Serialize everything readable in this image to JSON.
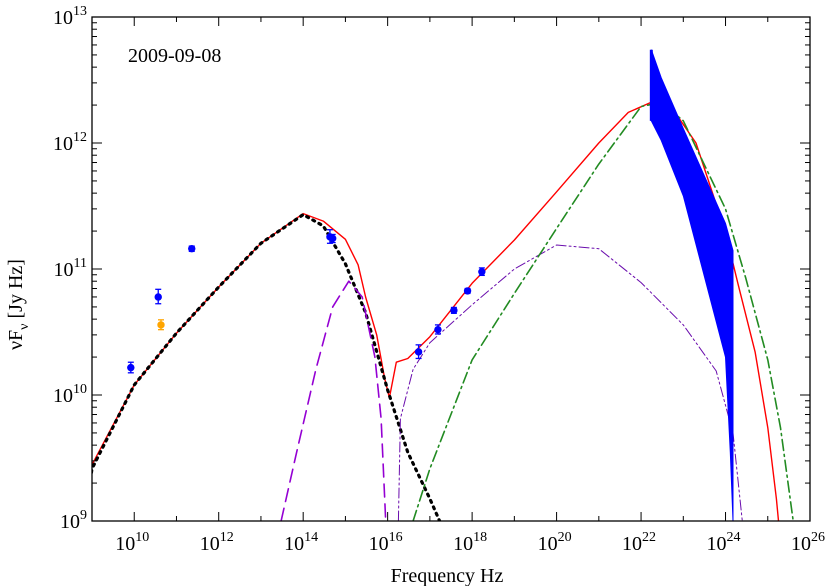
{
  "chart_data": {
    "type": "line",
    "annotation": "2009-09-08",
    "xlabel": "Frequency Hz",
    "ylabel": {
      "main": "νF",
      "sub": "ν",
      "unit": " [Jy Hz]"
    },
    "xscale": "log",
    "yscale": "log",
    "xlim": [
      1000000000.0,
      1e+26
    ],
    "ylim": [
      1000000000.0,
      10000000000000.0
    ],
    "x_ticks": [
      {
        "value": 10000000000.0,
        "base": "10",
        "exp": "10"
      },
      {
        "value": 1000000000000.0,
        "base": "10",
        "exp": "12"
      },
      {
        "value": 100000000000000.0,
        "base": "10",
        "exp": "14"
      },
      {
        "value": 1e+16,
        "base": "10",
        "exp": "16"
      },
      {
        "value": 1e+18,
        "base": "10",
        "exp": "18"
      },
      {
        "value": 1e+20,
        "base": "10",
        "exp": "20"
      },
      {
        "value": 1e+22,
        "base": "10",
        "exp": "22"
      },
      {
        "value": 1e+24,
        "base": "10",
        "exp": "24"
      },
      {
        "value": 1e+26,
        "base": "10",
        "exp": "26"
      }
    ],
    "y_ticks": [
      {
        "value": 1000000000.0,
        "base": "10",
        "exp": "9"
      },
      {
        "value": 10000000000.0,
        "base": "10",
        "exp": "10"
      },
      {
        "value": 100000000000.0,
        "base": "10",
        "exp": "11"
      },
      {
        "value": 1000000000000.0,
        "base": "10",
        "exp": "12"
      },
      {
        "value": 10000000000000.0,
        "base": "10",
        "exp": "13"
      }
    ],
    "observations": [
      {
        "name": "radio-1",
        "color": "#0000ff",
        "x": 8300000000.0,
        "y": 16500000000.0,
        "ylo": 15000000000.0,
        "yhi": 18200000000.0
      },
      {
        "name": "radio-2",
        "color": "#0000ff",
        "x": 37000000000.0,
        "y": 60000000000.0,
        "ylo": 53000000000.0,
        "yhi": 69000000000.0
      },
      {
        "name": "radio-3",
        "color": "#ffa500",
        "x": 43000000000.0,
        "y": 36000000000.0,
        "ylo": 33000000000.0,
        "yhi": 39500000000.0
      },
      {
        "name": "radio-4",
        "color": "#0000ff",
        "x": 230000000000.0,
        "y": 145000000000.0,
        "ylo": 138000000000.0,
        "yhi": 152000000000.0
      },
      {
        "name": "optical-1",
        "color": "#0000ff",
        "x": 430000000000000.0,
        "y": 180000000000.0,
        "ylo": 160000000000.0,
        "yhi": 205000000000.0
      },
      {
        "name": "optical-2",
        "color": "#0000ff",
        "x": 500000000000000.0,
        "y": 175000000000.0,
        "ylo": 162000000000.0,
        "yhi": 188000000000.0
      },
      {
        "name": "xray-1",
        "color": "#0000ff",
        "x": 5.4e+16,
        "y": 22000000000.0,
        "ylo": 19500000000.0,
        "yhi": 25000000000.0
      },
      {
        "name": "xray-2",
        "color": "#0000ff",
        "x": 1.55e+17,
        "y": 33000000000.0,
        "ylo": 30500000000.0,
        "yhi": 36000000000.0
      },
      {
        "name": "xray-3",
        "color": "#0000ff",
        "x": 3.7e+17,
        "y": 47000000000.0,
        "ylo": 44500000000.0,
        "yhi": 49500000000.0
      },
      {
        "name": "xray-4",
        "color": "#0000ff",
        "x": 7.8e+17,
        "y": 67000000000.0,
        "ylo": 64000000000.0,
        "yhi": 70000000000.0
      },
      {
        "name": "xray-5",
        "color": "#0000ff",
        "x": 1.7e+18,
        "y": 95000000000.0,
        "ylo": 89000000000.0,
        "yhi": 102000000000.0
      }
    ],
    "gamma_bowtie": {
      "color": "#0000ff",
      "upper": [
        [
          1.75e+22,
          5500000000000.0
        ],
        [
          3e+22,
          3300000000000.0
        ],
        [
          1e+23,
          1300000000000.0
        ],
        [
          1e+24,
          230000000000.0
        ],
        [
          1.5e+24,
          140000000000.0
        ]
      ],
      "lower": [
        [
          1.5e+24,
          1000000000.0
        ],
        [
          1.3e+24,
          3500000000.0
        ],
        [
          1e+24,
          20000000000.0
        ],
        [
          1e+23,
          380000000000.0
        ],
        [
          3e+22,
          1050000000000.0
        ],
        [
          1.75e+22,
          1500000000000.0
        ]
      ]
    },
    "series": [
      {
        "name": "total-model",
        "color": "#ff0000",
        "dash": "",
        "width": 1.4,
        "points": [
          [
            750000000.0,
            1000000000.0
          ],
          [
            830000000.0,
            1650000000.0
          ],
          [
            1000000000.0,
            2800000000.0
          ],
          [
            10000000000.0,
            12000000000.0
          ],
          [
            100000000000.0,
            31000000000.0
          ],
          [
            1000000000000.0,
            72000000000.0
          ],
          [
            10000000000000.0,
            160000000000.0
          ],
          [
            100000000000000.0,
            275000000000.0
          ],
          [
            300000000000000.0,
            240000000000.0
          ],
          [
            1000000000000000.0,
            172000000000.0
          ],
          [
            2000000000000000.0,
            108000000000.0
          ],
          [
            3000000000000000.0,
            60000000000.0
          ],
          [
            5500000000000000.0,
            30000000000.0
          ],
          [
            8500000000000000.0,
            13500000000.0
          ],
          [
            1.1e+16,
            9500000000.0
          ],
          [
            1.6e+16,
            18200000000.0
          ],
          [
            3e+16,
            19500000000.0
          ],
          [
            1e+17,
            29000000000.0
          ],
          [
            1e+18,
            77000000000.0
          ],
          [
            1e+19,
            170000000000.0
          ],
          [
            1e+20,
            410000000000.0
          ],
          [
            1e+21,
            1000000000000.0
          ],
          [
            5e+21,
            1750000000000.0
          ],
          [
            2e+22,
            2150000000000.0
          ],
          [
            6e+22,
            1800000000000.0
          ],
          [
            2e+23,
            1000000000000.0
          ],
          [
            1e+24,
            195000000000.0
          ],
          [
            2e+24,
            75000000000.0
          ],
          [
            5e+24,
            22000000000.0
          ],
          [
            1e+25,
            5500000000.0
          ],
          [
            1.6e+25,
            1500000000.0
          ],
          [
            1.8e+25,
            1000000000.0
          ]
        ]
      },
      {
        "name": "synchrotron",
        "color": "#000000",
        "dash": "2,5",
        "width": 3.2,
        "points": [
          [
            650000000.0,
            1000000000.0
          ],
          [
            1000000000.0,
            2600000000.0
          ],
          [
            10000000000.0,
            12000000000.0
          ],
          [
            100000000000.0,
            31000000000.0
          ],
          [
            1000000000000.0,
            72000000000.0
          ],
          [
            10000000000000.0,
            160000000000.0
          ],
          [
            100000000000000.0,
            270000000000.0
          ],
          [
            300000000000000.0,
            220000000000.0
          ],
          [
            1000000000000000.0,
            110000000000.0
          ],
          [
            3000000000000000.0,
            45000000000.0
          ],
          [
            1e+16,
            11000000000.0
          ],
          [
            3e+16,
            3500000000.0
          ],
          [
            1e+17,
            1500000000.0
          ],
          [
            1.7e+17,
            1000000000.0
          ]
        ]
      },
      {
        "name": "disk",
        "color": "#9400d3",
        "dash": "13,7",
        "width": 1.6,
        "points": [
          [
            30000000000000.0,
            1000000000.0
          ],
          [
            70000000000000.0,
            3500000000.0
          ],
          [
            200000000000000.0,
            16000000000.0
          ],
          [
            500000000000000.0,
            50000000000.0
          ],
          [
            1200000000000000.0,
            80000000000.0
          ],
          [
            2500000000000000.0,
            60000000000.0
          ],
          [
            5000000000000000.0,
            20000000000.0
          ],
          [
            7000000000000000.0,
            6500000000.0
          ],
          [
            9000000000000000.0,
            1000000000.0
          ]
        ]
      },
      {
        "name": "ssc",
        "color": "#6a0dad",
        "dash": "10,3,2,3,2,3",
        "width": 1.0,
        "points": [
          [
            1.8e+16,
            1000000000.0
          ],
          [
            2e+16,
            6500000000.0
          ],
          [
            4e+16,
            16000000000.0
          ],
          [
            1e+17,
            26000000000.0
          ],
          [
            1e+18,
            52000000000.0
          ],
          [
            1e+19,
            100000000000.0
          ],
          [
            1e+20,
            155000000000.0
          ],
          [
            1e+21,
            145000000000.0
          ],
          [
            1e+22,
            78000000000.0
          ],
          [
            1e+23,
            36000000000.0
          ],
          [
            6e+23,
            15500000000.0
          ],
          [
            1.5e+24,
            5000000000.0
          ],
          [
            2.5e+24,
            1000000000.0
          ]
        ]
      },
      {
        "name": "external-compton",
        "color": "#228b22",
        "dash": "11,4,2,4",
        "width": 1.6,
        "points": [
          [
            4e+16,
            1000000000.0
          ],
          [
            1e+17,
            2600000000.0
          ],
          [
            1e+18,
            19000000000.0
          ],
          [
            1e+19,
            64000000000.0
          ],
          [
            1e+20,
            210000000000.0
          ],
          [
            1e+21,
            680000000000.0
          ],
          [
            1e+22,
            1950000000000.0
          ],
          [
            3e+22,
            2100000000000.0
          ],
          [
            1e+23,
            1500000000000.0
          ],
          [
            1e+24,
            300000000000.0
          ],
          [
            3e+24,
            85000000000.0
          ],
          [
            1e+25,
            19000000000.0
          ],
          [
            2e+25,
            5500000000.0
          ],
          [
            4e+25,
            1000000000.0
          ]
        ]
      }
    ]
  }
}
